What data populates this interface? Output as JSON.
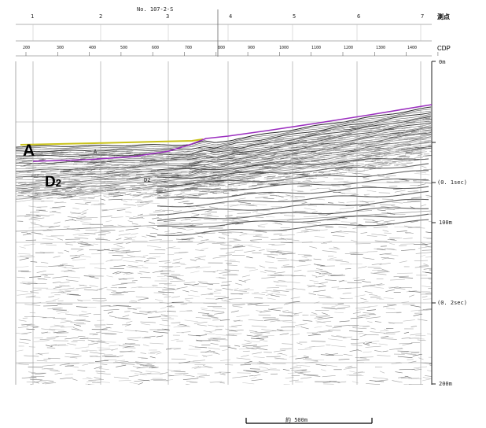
{
  "profile_no": "No. 107-2-S",
  "stations": {
    "header": "測点",
    "labels": [
      "1",
      "2",
      "3",
      "4",
      "5",
      "6",
      "7"
    ]
  },
  "cdp": {
    "header": "CDP",
    "labels": [
      "200",
      "300",
      "400",
      "500",
      "600",
      "700",
      "800",
      "900",
      "1000",
      "1100",
      "1200",
      "1300",
      "1400"
    ]
  },
  "depth_axis": {
    "labels": [
      "0m",
      "(0. 1sec)",
      "100m",
      "(0. 2sec)",
      "200m"
    ]
  },
  "horizons": {
    "A_label": "A",
    "D2_label_main": "D",
    "D2_label_sub": "2",
    "A_small": "A",
    "D2_small": "D2",
    "colors": {
      "A_top": "#c9c21a",
      "A_base": "#9b2fbf"
    }
  },
  "scale_bar": {
    "label": "約 500m"
  }
}
